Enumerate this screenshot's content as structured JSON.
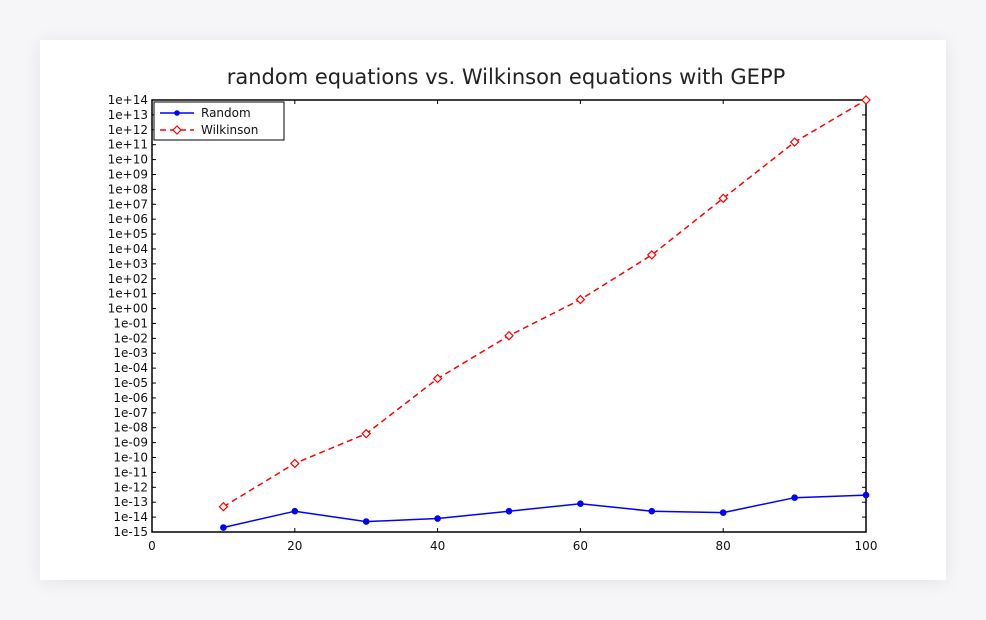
{
  "chart_data": {
    "type": "line",
    "title": "random equations vs. Wilkinson equations with GEPP",
    "xlabel": "",
    "ylabel": "",
    "xlim": [
      0,
      100
    ],
    "ylim_exponent": [
      -15,
      14
    ],
    "y_scale": "log",
    "x_ticks": [
      "0",
      "20",
      "40",
      "60",
      "80",
      "100"
    ],
    "x_tick_values": [
      0,
      20,
      40,
      60,
      80,
      100
    ],
    "y_ticks": [
      "1e-15",
      "1e-14",
      "1e-13",
      "1e-12",
      "1e-11",
      "1e-10",
      "1e-09",
      "1e-08",
      "1e-07",
      "1e-06",
      "1e-05",
      "1e-04",
      "1e-03",
      "1e-02",
      "1e-01",
      "1e+00",
      "1e+01",
      "1e+02",
      "1e+03",
      "1e+04",
      "1e+05",
      "1e+06",
      "1e+07",
      "1e+08",
      "1e+09",
      "1e+10",
      "1e+11",
      "1e+12",
      "1e+13",
      "1e+14"
    ],
    "y_tick_values": [
      1e-15,
      1e-14,
      1e-13,
      1e-12,
      1e-11,
      1e-10,
      1e-09,
      1e-08,
      1e-07,
      1e-06,
      1e-05,
      0.0001,
      0.001,
      0.01,
      0.1,
      1.0,
      10.0,
      100.0,
      1000.0,
      10000.0,
      100000.0,
      1000000.0,
      10000000.0,
      100000000.0,
      1000000000.0,
      10000000000.0,
      100000000000.0,
      1000000000000.0,
      10000000000000.0,
      100000000000000.0
    ],
    "grid": false,
    "legend_position": "top-left",
    "x": [
      10,
      20,
      30,
      40,
      50,
      60,
      70,
      80,
      90,
      100
    ],
    "series": [
      {
        "name": "Random",
        "color": "#0000ff",
        "style": "solid",
        "marker": "dot",
        "values": [
          2e-15,
          2.5e-14,
          5e-15,
          8e-15,
          2.5e-14,
          8e-14,
          2.5e-14,
          2e-14,
          2e-13,
          3e-13
        ]
      },
      {
        "name": "Wilkinson",
        "color": "#ff0000",
        "style": "dashed",
        "marker": "diamond",
        "values": [
          5e-14,
          4e-11,
          4e-09,
          2e-05,
          0.015,
          4.0,
          4000.0,
          25000000.0,
          150000000000.0,
          100000000000000.0
        ]
      }
    ]
  }
}
